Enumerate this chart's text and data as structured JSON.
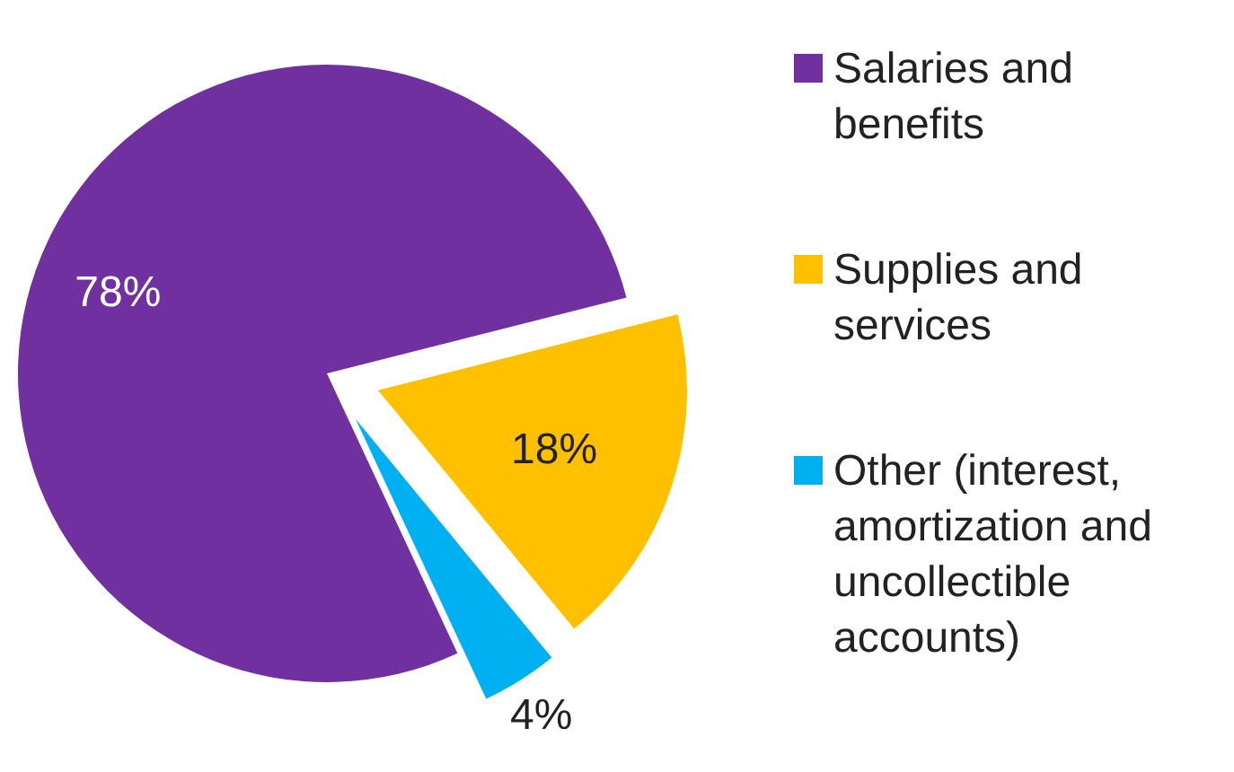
{
  "chart_data": {
    "type": "pie",
    "categories": [
      "Salaries and benefits",
      "Supplies and services",
      "Other (interest, amortization and uncollectible accounts)"
    ],
    "values": [
      78,
      18,
      4
    ],
    "colors": [
      "#7030a0",
      "#ffc000",
      "#00b0f0"
    ],
    "value_labels": [
      "78%",
      "18%",
      "4%"
    ],
    "legend": "right"
  }
}
